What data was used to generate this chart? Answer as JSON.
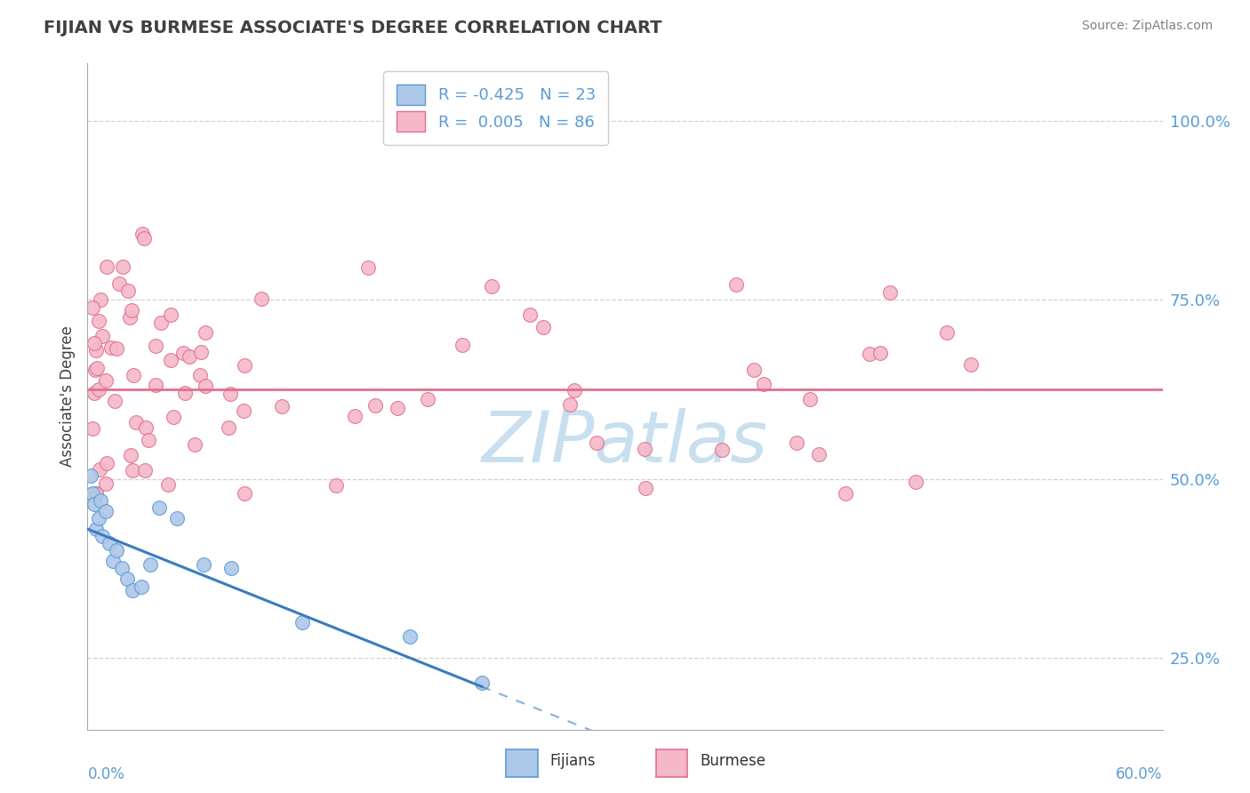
{
  "title": "FIJIAN VS BURMESE ASSOCIATE'S DEGREE CORRELATION CHART",
  "source": "Source: ZipAtlas.com",
  "ylabel": "Associate's Degree",
  "xlim": [
    0.0,
    60.0
  ],
  "ylim": [
    15.0,
    108.0
  ],
  "yticks": [
    25.0,
    50.0,
    75.0,
    100.0
  ],
  "ytick_labels": [
    "25.0%",
    "50.0%",
    "75.0%",
    "100.0%"
  ],
  "fijian_color": "#adc8e8",
  "fijian_color_dark": "#5b9bd5",
  "burmese_color": "#f5b8c8",
  "burmese_color_dark": "#e07090",
  "fijian_R": -0.425,
  "fijian_N": 23,
  "burmese_R": 0.005,
  "burmese_N": 86,
  "background_color": "#ffffff",
  "grid_color": "#cccccc",
  "axis_label_color": "#5b9bd5",
  "title_color": "#404040",
  "source_color": "#808080",
  "watermark_color": "#c8dff0",
  "fijian_trend_y0": 43.0,
  "fijian_trend_y1": 21.0,
  "fijian_trend_x0": 0.0,
  "fijian_trend_x1": 22.0,
  "burmese_trend_y": 62.5,
  "burmese_trend_color": "#e07090",
  "fijian_trend_color": "#3a7bbf"
}
